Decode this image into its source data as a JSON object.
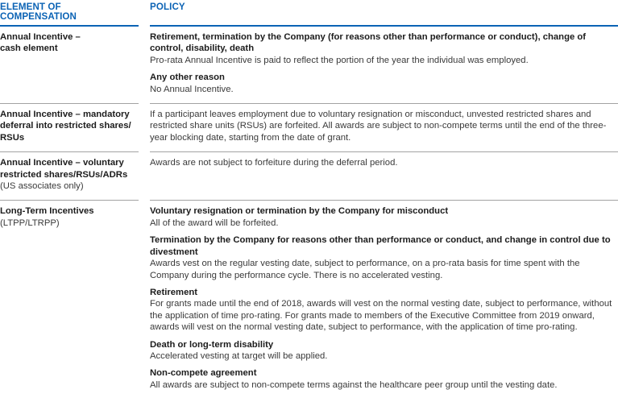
{
  "colors": {
    "accent_blue": "#0b63b5",
    "divider_gray": "#a3a3a3",
    "heading_text": "#1c1c1c",
    "body_text": "#3a3a3a"
  },
  "table": {
    "column_headers": {
      "element": "ELEMENT OF COMPENSATION",
      "policy": "POLICY"
    },
    "rows": [
      {
        "element": {
          "title": "Annual Incentive –\ncash element",
          "subtitle": ""
        },
        "policy_sections": [
          {
            "heading": "Retirement, termination by the Company (for reasons other than performance or conduct), change of control, disability, death",
            "body": "Pro-rata Annual Incentive is paid to reflect the portion of the year the individual was employed."
          },
          {
            "heading": "Any other reason",
            "body": "No Annual Incentive."
          }
        ]
      },
      {
        "element": {
          "title": "Annual Incentive – mandatory\ndeferral into restricted shares/\nRSUs",
          "subtitle": ""
        },
        "policy_sections": [
          {
            "heading": "",
            "body": "If a participant leaves employment due to voluntary resignation or misconduct, unvested restricted shares and restricted share units (RSUs) are forfeited. All awards are subject to non-compete terms until the end of the three-year blocking date, starting from the date of grant."
          }
        ]
      },
      {
        "element": {
          "title": "Annual Incentive – voluntary\nrestricted shares/RSUs/ADRs",
          "subtitle": "(US associates only)"
        },
        "policy_sections": [
          {
            "heading": "",
            "body": "Awards are not subject to forfeiture during the deferral period."
          }
        ]
      },
      {
        "element": {
          "title": "Long-Term Incentives",
          "subtitle": "(LTPP/LTRPP)"
        },
        "policy_sections": [
          {
            "heading": "Voluntary resignation or termination by the Company for misconduct",
            "body": "All of the award will be forfeited."
          },
          {
            "heading": "Termination by the Company for reasons other than performance or conduct, and change in control due to divestment",
            "body": "Awards vest on the regular vesting date, subject to performance, on a pro-rata basis for time spent with the Company during the performance cycle. There is no accelerated vesting."
          },
          {
            "heading": "Retirement",
            "body": "For grants made until the end of 2018, awards will vest on the normal vesting date, subject to performance, without the application of time pro-rating. For grants made to members of the Executive Committee from 2019 onward, awards will vest on the normal vesting date, subject to performance, with the application of time pro-rating."
          },
          {
            "heading": "Death or long-term disability",
            "body": "Accelerated vesting at target will be applied."
          },
          {
            "heading": "Non-compete agreement",
            "body": "All awards are subject to non-compete terms against the healthcare peer group until the vesting date."
          }
        ]
      }
    ]
  }
}
